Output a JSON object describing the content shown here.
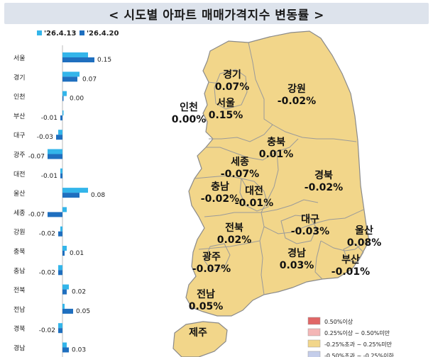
{
  "title": "< 시도별 아파트 매매가격지수 변동률 >",
  "legend": {
    "series": [
      {
        "name": "'26.4.13",
        "color": "#33b5ea"
      },
      {
        "name": "'26.4.20",
        "color": "#1f6fbf"
      }
    ]
  },
  "chart_data": {
    "type": "bar",
    "orientation": "horizontal",
    "categories": [
      "서울",
      "경기",
      "인천",
      "부산",
      "대구",
      "광주",
      "대전",
      "울산",
      "세종",
      "강원",
      "충북",
      "충남",
      "전북",
      "전남",
      "경북",
      "경남"
    ],
    "series": [
      {
        "name": "'26.4.13",
        "values": [
          0.12,
          0.08,
          0.02,
          0.0,
          -0.02,
          -0.07,
          -0.01,
          0.12,
          0.02,
          -0.01,
          0.02,
          -0.02,
          0.03,
          0.01,
          -0.02,
          0.02
        ]
      },
      {
        "name": "'26.4.20",
        "values": [
          0.15,
          0.07,
          0.0,
          -0.01,
          -0.03,
          -0.07,
          -0.01,
          0.08,
          -0.07,
          -0.02,
          0.01,
          -0.02,
          0.02,
          0.05,
          -0.02,
          0.03
        ]
      }
    ],
    "labels": [
      "0.15",
      "0.07",
      "0.00",
      "-0.01",
      "-0.03",
      "-0.07",
      "-0.01",
      "0.08",
      "-0.07",
      "-0.02",
      "0.01",
      "-0.02",
      "0.02",
      "0.05",
      "-0.02",
      "0.03"
    ]
  },
  "map": {
    "regions": [
      {
        "name": "경기",
        "value": "0.07%"
      },
      {
        "name": "강원",
        "value": "-0.02%"
      },
      {
        "name": "인천",
        "value": "0.00%"
      },
      {
        "name": "서울",
        "value": "0.15%"
      },
      {
        "name": "충북",
        "value": "0.01%"
      },
      {
        "name": "세종",
        "value": "-0.07%"
      },
      {
        "name": "경북",
        "value": "-0.02%"
      },
      {
        "name": "충남",
        "value": "-0.02%"
      },
      {
        "name": "대전",
        "value": "-0.01%"
      },
      {
        "name": "전북",
        "value": "0.02%"
      },
      {
        "name": "대구",
        "value": "-0.03%"
      },
      {
        "name": "울산",
        "value": "0.08%"
      },
      {
        "name": "광주",
        "value": "-0.07%"
      },
      {
        "name": "경남",
        "value": "0.03%"
      },
      {
        "name": "부산",
        "value": "-0.01%"
      },
      {
        "name": "전남",
        "value": "0.05%"
      },
      {
        "name": "제주",
        "value": ""
      }
    ],
    "fill_color": "#f2d68a",
    "border_color": "#8a8a8a"
  },
  "map_legend": [
    {
      "label": "0.50%이상",
      "color": "#e06666"
    },
    {
      "label": "0.25%이상 ~ 0.50%미만",
      "color": "#f4b6b6"
    },
    {
      "label": "-0.25%초과 ~ 0.25%미만",
      "color": "#f2d68a"
    },
    {
      "label": "-0.50%초과 ~ -0.25%이하",
      "color": "#c4cdea"
    }
  ]
}
